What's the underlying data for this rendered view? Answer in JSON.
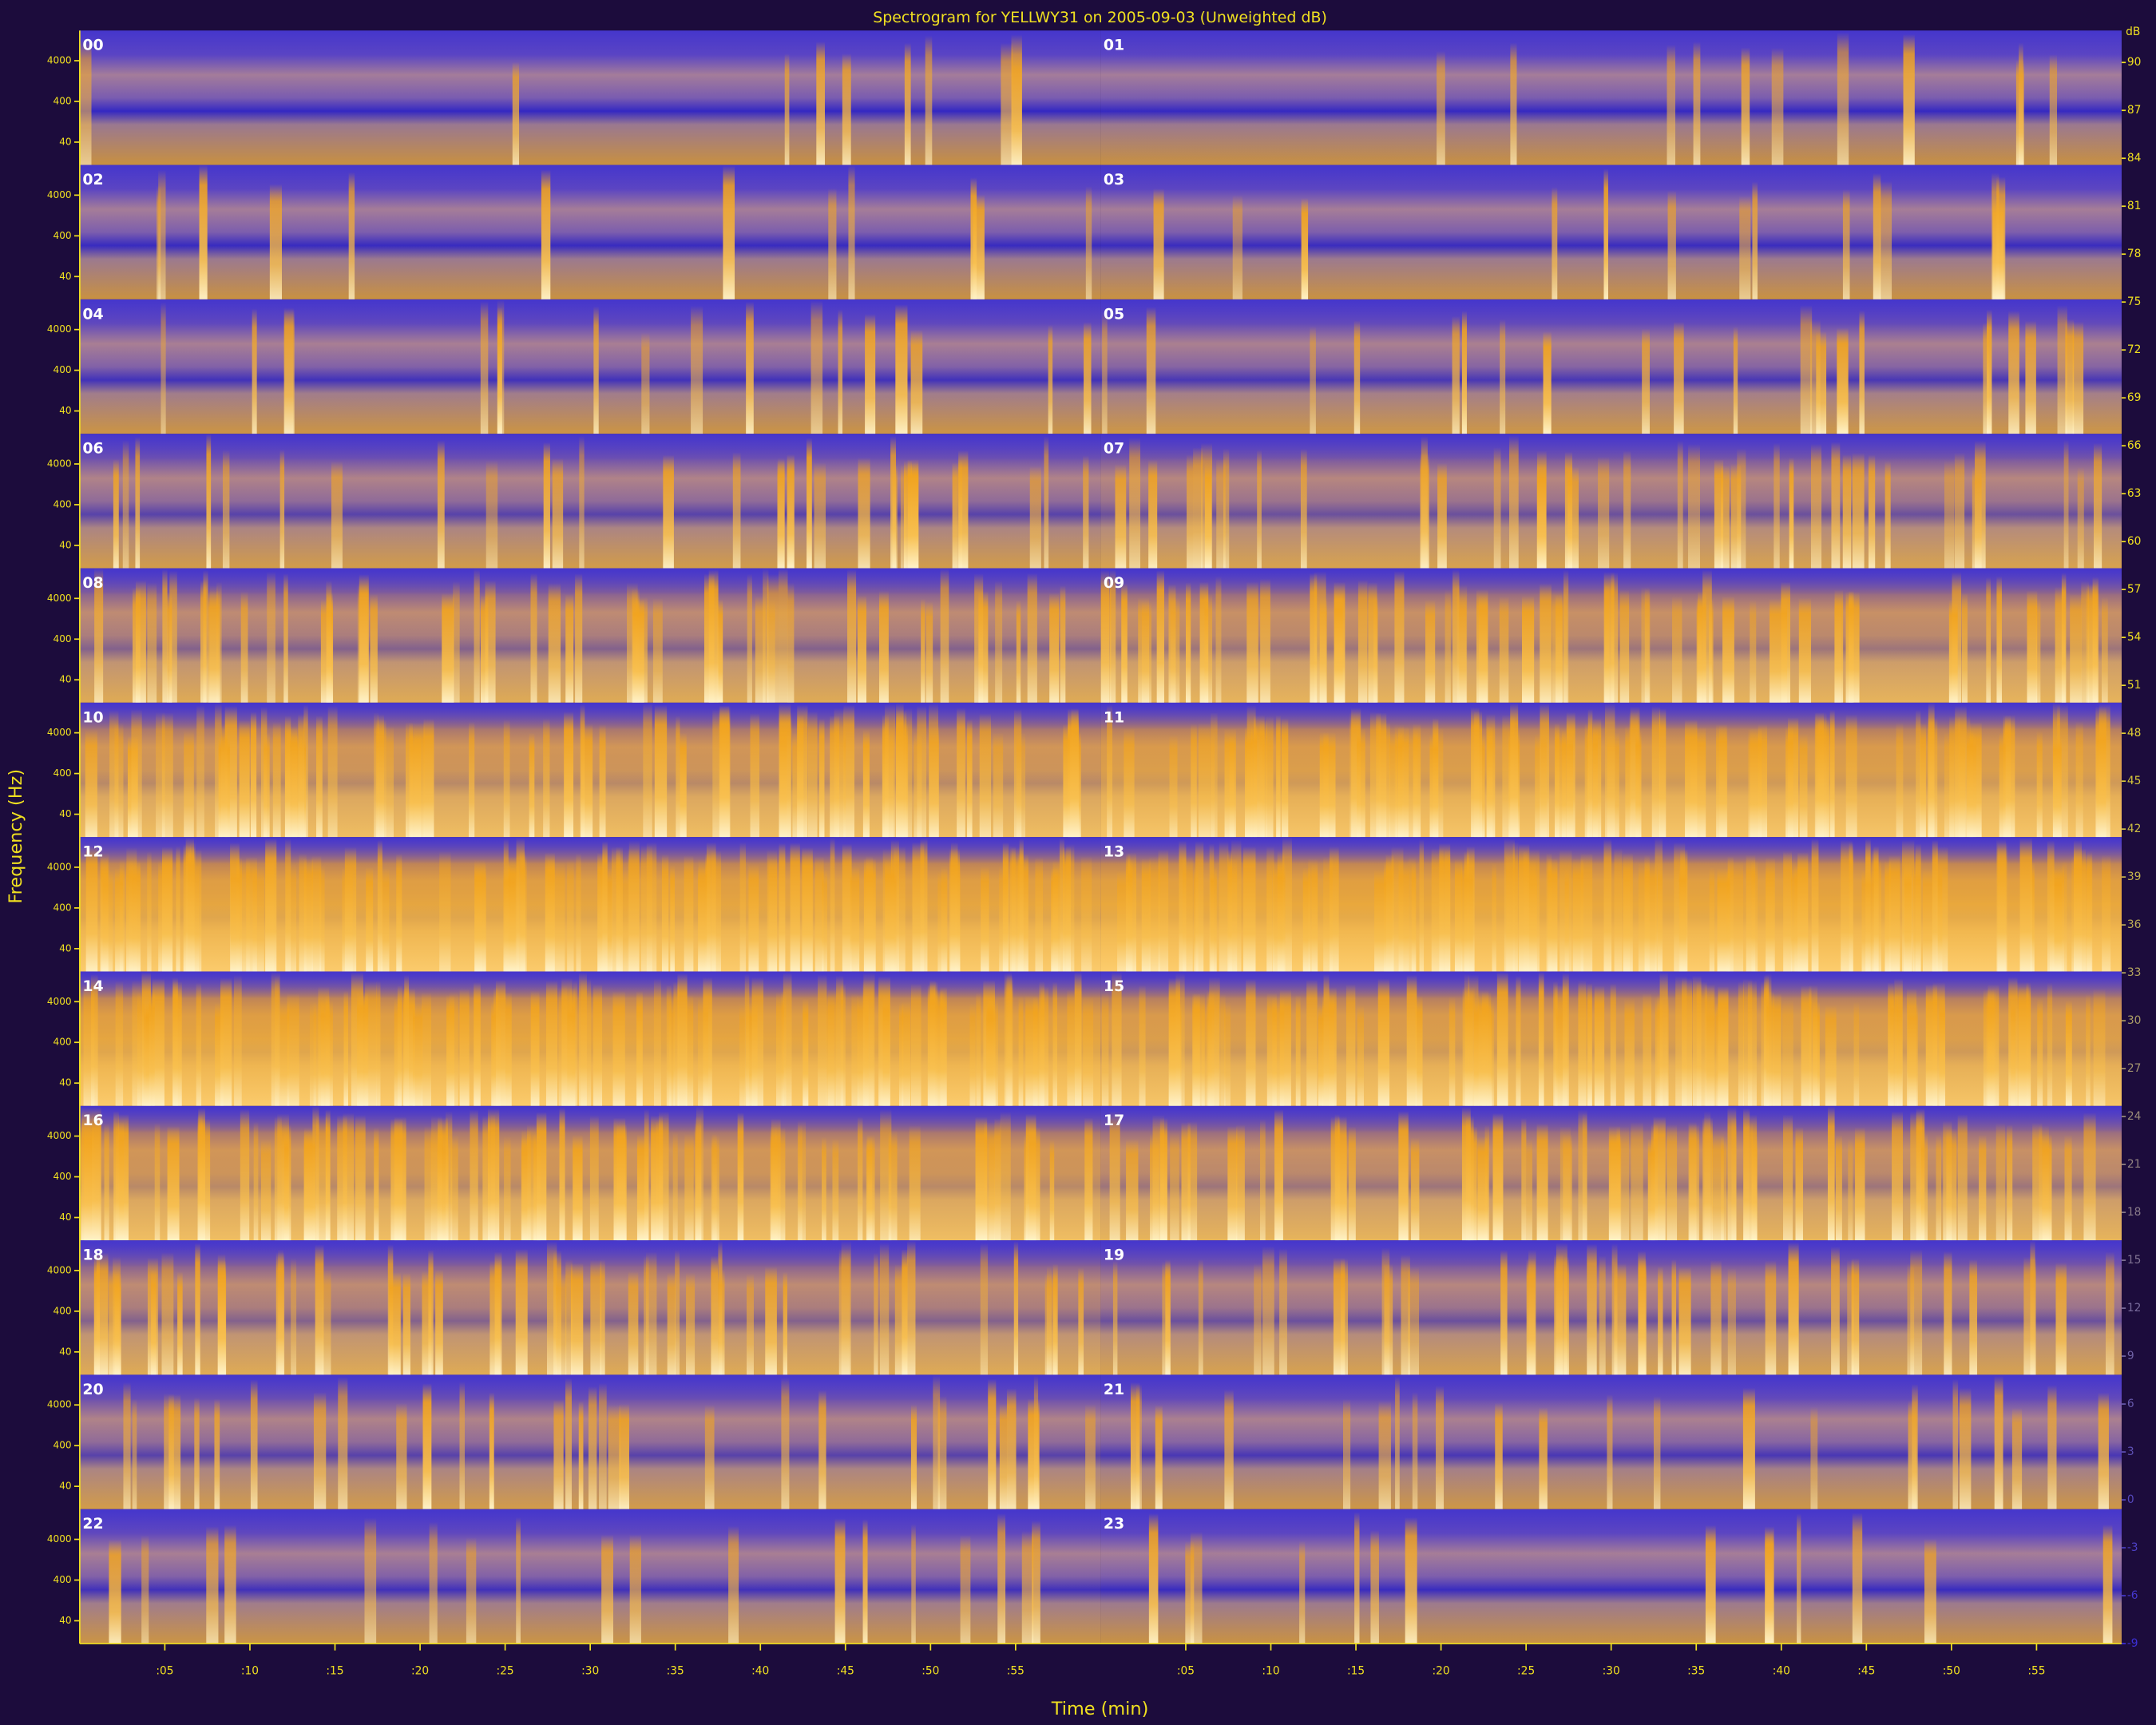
{
  "chart_data": {
    "type": "spectrogram",
    "title": "Spectrogram for YELLWY31 on 2005-09-03 (Unweighted dB)",
    "x_label": "Time (min)",
    "y_label": "Frequency (Hz)",
    "panels": [
      "00",
      "01",
      "02",
      "03",
      "04",
      "05",
      "06",
      "07",
      "08",
      "09",
      "10",
      "11",
      "12",
      "13",
      "14",
      "15",
      "16",
      "17",
      "18",
      "19",
      "20",
      "21",
      "22",
      "23"
    ],
    "xlim": [
      0,
      60
    ],
    "xticks": [
      {
        "value": 5,
        "label": ":05"
      },
      {
        "value": 10,
        "label": ":10"
      },
      {
        "value": 15,
        "label": ":15"
      },
      {
        "value": 20,
        "label": ":20"
      },
      {
        "value": 25,
        "label": ":25"
      },
      {
        "value": 30,
        "label": ":30"
      },
      {
        "value": 35,
        "label": ":35"
      },
      {
        "value": 40,
        "label": ":40"
      },
      {
        "value": 45,
        "label": ":45"
      },
      {
        "value": 50,
        "label": ":50"
      },
      {
        "value": 55,
        "label": ":55"
      }
    ],
    "ylim": [
      11,
      22050
    ],
    "yticks": [
      40,
      400,
      4000
    ],
    "log_y": true,
    "colorbar": {
      "label": "dB",
      "lim": [
        -9,
        92
      ],
      "ticks": [
        90,
        87,
        84,
        81,
        78,
        75,
        72,
        69,
        66,
        63,
        60,
        57,
        54,
        51,
        48,
        45,
        42,
        39,
        36,
        33,
        30,
        27,
        24,
        21,
        18,
        15,
        12,
        9,
        6,
        3,
        0,
        -3,
        -6,
        -9
      ]
    },
    "colormap": [
      "#3c30d8",
      "#f2a41e",
      "#fff2c8"
    ]
  }
}
